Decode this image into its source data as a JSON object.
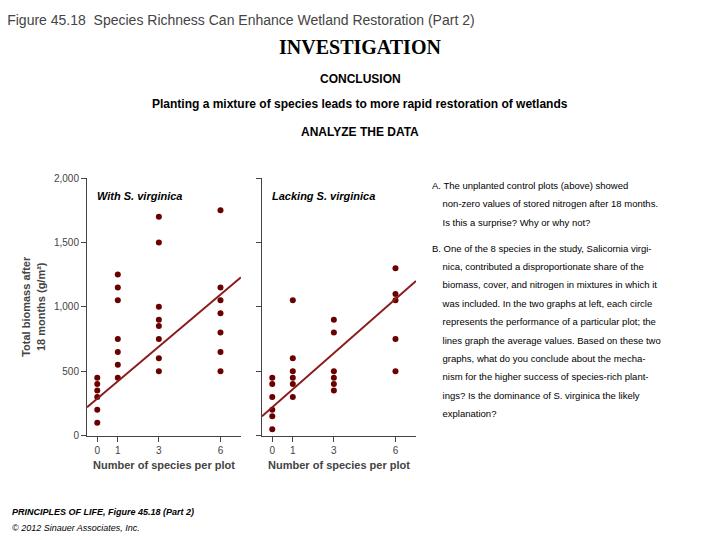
{
  "title": "Figure 45.18  Species Richness Can Enhance Wetland Restoration (Part 2)",
  "annotations": [
    [
      "INVESTIGATION",
      "CONCLUSION",
      "Planting a mixture of species leads to more rapid restoration of wetlands",
      "ANALYZE THE DATA"
    ],
    [
      "A. The unplanted control plots (above) showed",
      "    non-zero values of stored nitrogen after 18 months.",
      "    Is this a surprise? Why or why not?"
    ],
    [
      "B. One of the 8 species in the study, Salicornia virgi-",
      "    nica, contributed a disproportionate share of the",
      "    biomass, cover, and nitrogen in mixtures in which it",
      "    was included. In the two graphs at left, each circle",
      "    represents the performance of a particular plot; the",
      "    lines graph the average values. Based on these two",
      "    graphs, what do you conclude about the mecha-",
      "    nism for the higher success of species-rich plant-",
      "    ings? Is the dominance of S. virginica the likely",
      "    explanation?"
    ],
    [
      "PRINCIPLES OF LIFE, Figure 45.18 (Part 2)",
      "© 2012 Sinauer Associates, Inc."
    ]
  ],
  "chart_data": [
    {
      "type": "scatter",
      "title": "With S. virginica",
      "x_label": "Number of species per plot",
      "y_label": "Total biomass after\n18 months (g/m²)",
      "xlim": [
        -0.5,
        7
      ],
      "xticks": [
        0,
        1,
        3,
        6
      ],
      "ylim": [
        0,
        2000
      ],
      "yticks": [
        0,
        500,
        {
          "value": 1000,
          "label": "1,000"
        },
        {
          "value": 1500,
          "label": "1,500"
        },
        {
          "value": 2000,
          "label": "2,000"
        }
      ],
      "grid": false,
      "series": [
        {
          "type": "scatter",
          "marker": "circle",
          "color": "#6B0000",
          "x": [
            0,
            0,
            0,
            0,
            0,
            0,
            1,
            1,
            1,
            1,
            1,
            1,
            1,
            3,
            3,
            3,
            3,
            3,
            3,
            3,
            3,
            6,
            6,
            6,
            6,
            6,
            6,
            6
          ],
          "values": [
            100,
            200,
            300,
            350,
            400,
            450,
            450,
            550,
            650,
            750,
            1050,
            1150,
            1250,
            500,
            600,
            750,
            850,
            900,
            1000,
            1500,
            1700,
            500,
            650,
            800,
            950,
            1050,
            1150,
            1750
          ]
        },
        {
          "type": "line",
          "line_style": "solid",
          "color": "#8B1A1A",
          "x": [
            -0.5,
            7
          ],
          "values": [
            220,
            1230
          ]
        }
      ]
    },
    {
      "type": "scatter",
      "title": "Lacking S. virginica",
      "x_label": "Number of species per plot",
      "xlim": [
        -0.5,
        7
      ],
      "xticks": [
        0,
        1,
        3,
        6
      ],
      "ylim": [
        0,
        2000
      ],
      "yticks": [
        0,
        500,
        1000,
        1500,
        2000
      ],
      "tick_labels": "x",
      "grid": false,
      "series": [
        {
          "type": "scatter",
          "marker": "circle",
          "color": "#6B0000",
          "x": [
            0,
            0,
            0,
            0,
            0,
            0,
            1,
            1,
            1,
            1,
            1,
            1,
            3,
            3,
            3,
            3,
            3,
            3,
            6,
            6,
            6,
            6,
            6
          ],
          "values": [
            50,
            150,
            200,
            300,
            400,
            450,
            300,
            400,
            450,
            500,
            600,
            1050,
            350,
            400,
            450,
            500,
            800,
            900,
            500,
            750,
            1050,
            1100,
            1300
          ]
        },
        {
          "type": "line",
          "line_style": "solid",
          "color": "#8B1A1A",
          "x": [
            -0.5,
            7
          ],
          "values": [
            150,
            1200
          ]
        }
      ]
    }
  ]
}
